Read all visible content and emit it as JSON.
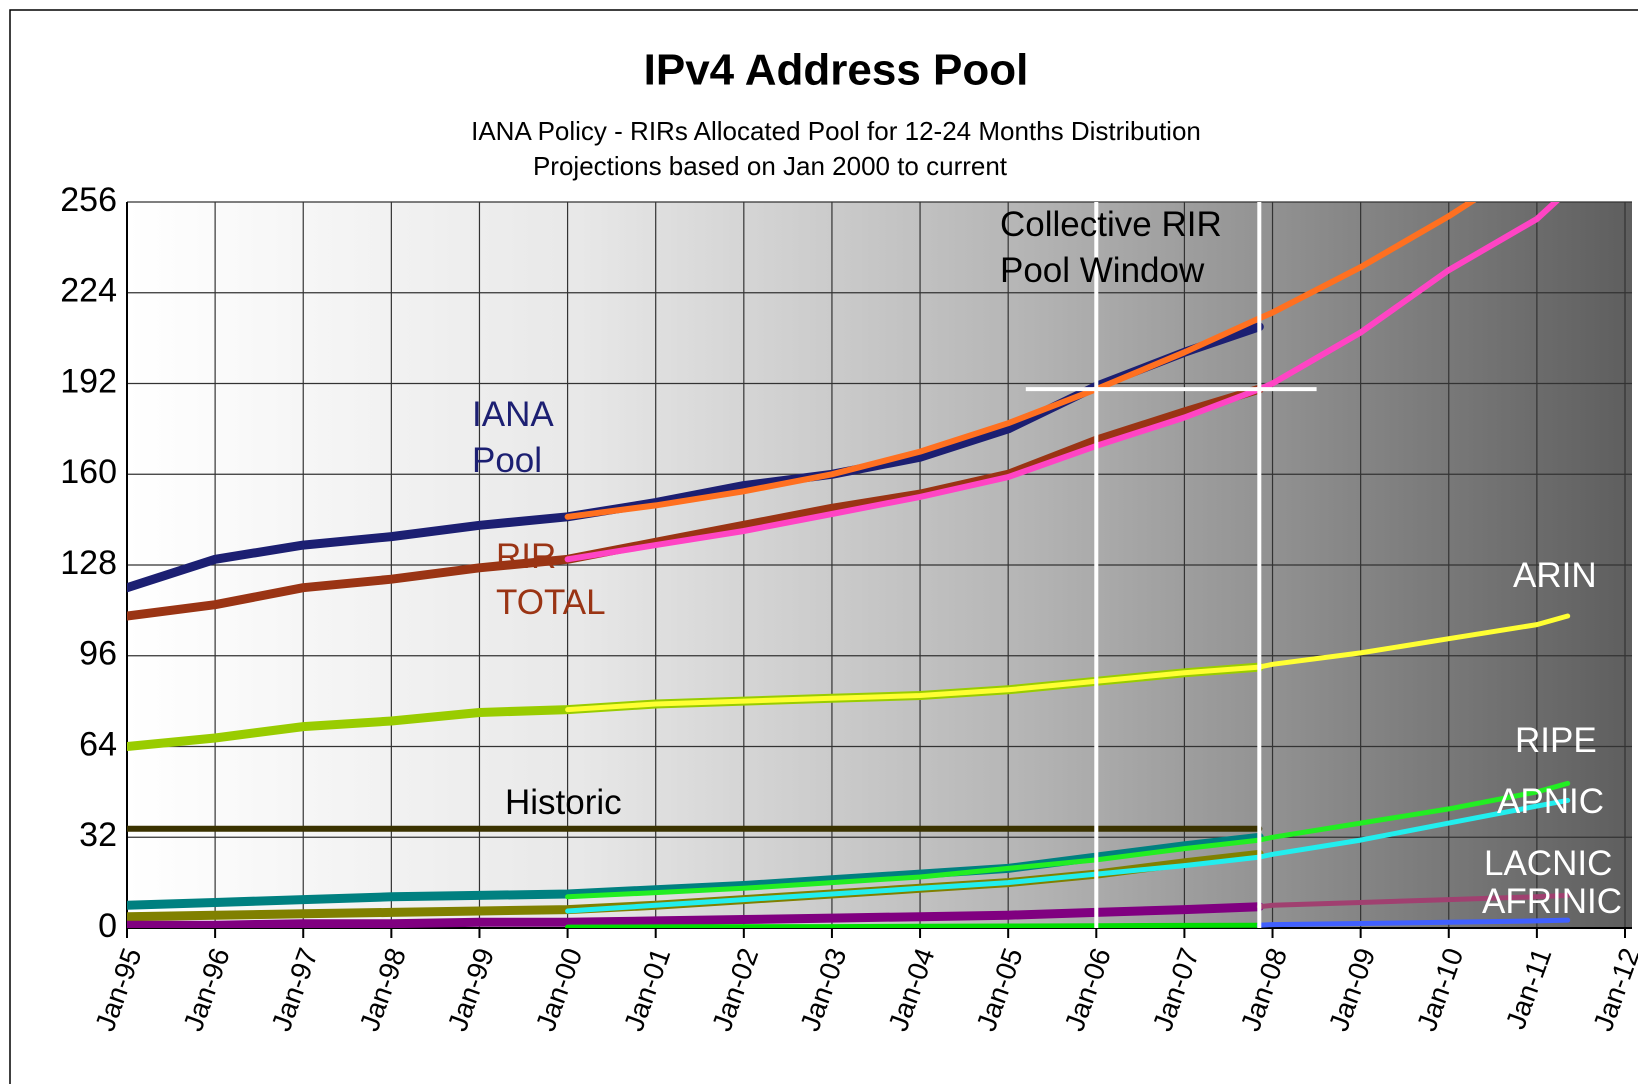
{
  "chart_data": {
    "type": "line",
    "title": "IPv4 Address Pool",
    "subtitle": [
      "IANA Policy - RIRs Allocated Pool for 12-24 Months Distribution",
      "Projections based on Jan 2000 to current"
    ],
    "annotation": "Collective RIR Pool Window",
    "window_lines": {
      "x": [
        2006,
        2007.85
      ],
      "y": 190,
      "xrange": [
        2005.2,
        2008.5
      ]
    },
    "x": [
      1995,
      1996,
      1997,
      1998,
      1999,
      2000,
      2001,
      2002,
      2003,
      2004,
      2005,
      2006,
      2007,
      2007.85,
      2008,
      2009,
      2010,
      2011,
      2011.35
    ],
    "xlim": [
      1995,
      2012
    ],
    "xticks": [
      {
        "value": 1995,
        "label": "Jan-95"
      },
      {
        "value": 1996,
        "label": "Jan-96"
      },
      {
        "value": 1997,
        "label": "Jan-97"
      },
      {
        "value": 1998,
        "label": "Jan-98"
      },
      {
        "value": 1999,
        "label": "Jan-99"
      },
      {
        "value": 2000,
        "label": "Jan-00"
      },
      {
        "value": 2001,
        "label": "Jan-01"
      },
      {
        "value": 2002,
        "label": "Jan-02"
      },
      {
        "value": 2003,
        "label": "Jan-03"
      },
      {
        "value": 2004,
        "label": "Jan-04"
      },
      {
        "value": 2005,
        "label": "Jan-05"
      },
      {
        "value": 2006,
        "label": "Jan-06"
      },
      {
        "value": 2007,
        "label": "Jan-07"
      },
      {
        "value": 2008,
        "label": "Jan-08"
      },
      {
        "value": 2009,
        "label": "Jan-09"
      },
      {
        "value": 2010,
        "label": "Jan-10"
      },
      {
        "value": 2011,
        "label": "Jan-11"
      },
      {
        "value": 2012,
        "label": "Jan-12"
      }
    ],
    "ylim": [
      0,
      256
    ],
    "yticks": [
      0,
      32,
      64,
      96,
      128,
      160,
      192,
      224,
      256
    ],
    "grid": true,
    "series": [
      {
        "name": "IANA Pool",
        "color": "#1c1f72",
        "values": [
          120,
          130,
          135,
          138,
          142,
          145,
          150,
          156,
          160,
          166,
          176,
          191,
          203,
          212,
          null,
          null,
          null,
          null,
          null
        ]
      },
      {
        "color": "#ff7020",
        "values": [
          null,
          null,
          null,
          null,
          null,
          145,
          149,
          154,
          160,
          168,
          178,
          190,
          203,
          215,
          217,
          233,
          251,
          271,
          null
        ]
      },
      {
        "name": "RIR TOTAL",
        "color": "#9a3414",
        "values": [
          110,
          114,
          120,
          123,
          127,
          130,
          136,
          142,
          148,
          153,
          160,
          172,
          182,
          190,
          null,
          null,
          null,
          null,
          null
        ]
      },
      {
        "color": "#ff44c4",
        "values": [
          null,
          null,
          null,
          null,
          null,
          130,
          135,
          140,
          146,
          152,
          159,
          170,
          180,
          190,
          192,
          210,
          232,
          250,
          260
        ]
      },
      {
        "name": "ARIN",
        "color": "#99cc00",
        "values": [
          64,
          67,
          71,
          73,
          76,
          77,
          79,
          80,
          81,
          82,
          84,
          87,
          90,
          92,
          null,
          null,
          null,
          null,
          null
        ]
      },
      {
        "color": "#ffff33",
        "values": [
          null,
          null,
          null,
          null,
          null,
          77,
          79,
          80,
          81,
          82,
          84,
          87,
          90,
          92,
          93,
          97,
          102,
          107,
          110
        ]
      },
      {
        "name": "Historic",
        "color": "#3a3200",
        "values": [
          35,
          35,
          35,
          35,
          35,
          35,
          35,
          35,
          35,
          35,
          35,
          35,
          35,
          35,
          null,
          null,
          null,
          null,
          null
        ]
      },
      {
        "name": "RIPE",
        "color": "#008080",
        "values": [
          8,
          9,
          10,
          11,
          11.5,
          12,
          13.5,
          15,
          17,
          19,
          21,
          25,
          29,
          32,
          null,
          null,
          null,
          null,
          null
        ]
      },
      {
        "color": "#22ee22",
        "values": [
          null,
          null,
          null,
          null,
          null,
          11,
          12.5,
          14,
          16,
          18,
          21,
          24,
          28,
          31,
          32,
          37,
          42,
          48,
          51
        ]
      },
      {
        "name": "APNIC",
        "color": "#808000",
        "values": [
          4,
          4.5,
          5,
          5.5,
          6,
          6.5,
          8,
          10,
          12,
          14,
          16,
          19,
          23,
          26,
          null,
          null,
          null,
          null,
          null
        ]
      },
      {
        "color": "#22eeee",
        "values": [
          null,
          null,
          null,
          null,
          null,
          6,
          8,
          10,
          12,
          14,
          16,
          19,
          22,
          25,
          26,
          31,
          37,
          43,
          45
        ]
      },
      {
        "name": "LACNIC",
        "color": "#800080",
        "values": [
          1,
          1,
          1.5,
          1.5,
          2,
          2,
          2.5,
          3,
          3.5,
          4,
          4.5,
          5.5,
          6.5,
          7.5,
          null,
          null,
          null,
          null,
          null
        ]
      },
      {
        "color": "#a04070",
        "values": [
          null,
          null,
          null,
          null,
          null,
          null,
          null,
          null,
          null,
          null,
          null,
          null,
          null,
          7.5,
          8,
          9,
          10,
          11,
          11.5
        ]
      },
      {
        "name": "AFRINIC",
        "color": "#00dd00",
        "values": [
          null,
          null,
          null,
          null,
          null,
          0.3,
          0.4,
          0.5,
          0.5,
          0.6,
          0.7,
          0.8,
          0.9,
          1,
          null,
          null,
          null,
          null,
          null
        ]
      },
      {
        "color": "#4060ff",
        "values": [
          null,
          null,
          null,
          null,
          null,
          null,
          null,
          null,
          null,
          null,
          null,
          null,
          null,
          1,
          1.2,
          1.6,
          2,
          2.5,
          2.8
        ]
      }
    ]
  }
}
